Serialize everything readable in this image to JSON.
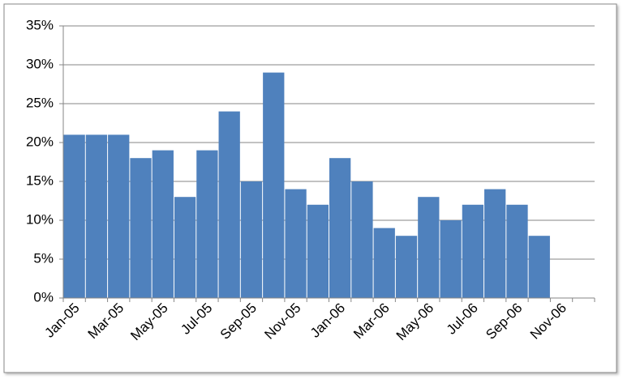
{
  "chart_data": {
    "type": "bar",
    "categories": [
      "Jan-05",
      null,
      "Mar-05",
      null,
      "May-05",
      null,
      "Jul-05",
      null,
      "Sep-05",
      null,
      "Nov-05",
      null,
      "Jan-06",
      null,
      "Mar-06",
      null,
      "May-06",
      null,
      "Jul-06",
      null,
      "Sep-06",
      null,
      "Nov-06",
      null
    ],
    "values": [
      21,
      21,
      21,
      18,
      19,
      13,
      19,
      24,
      15,
      29,
      14,
      12,
      18,
      15,
      9,
      8,
      13,
      10,
      12,
      14,
      12,
      8,
      null,
      null
    ],
    "color": "#4f81bd",
    "ylim": [
      0,
      35
    ],
    "yticks": [
      {
        "value": 0,
        "label": "0%"
      },
      {
        "value": 5,
        "label": "5%"
      },
      {
        "value": 10,
        "label": "10%"
      },
      {
        "value": 15,
        "label": "15%"
      },
      {
        "value": 20,
        "label": "20%"
      },
      {
        "value": 25,
        "label": "25%"
      },
      {
        "value": 30,
        "label": "30%"
      },
      {
        "value": 35,
        "label": "35%"
      }
    ],
    "grid": true
  }
}
